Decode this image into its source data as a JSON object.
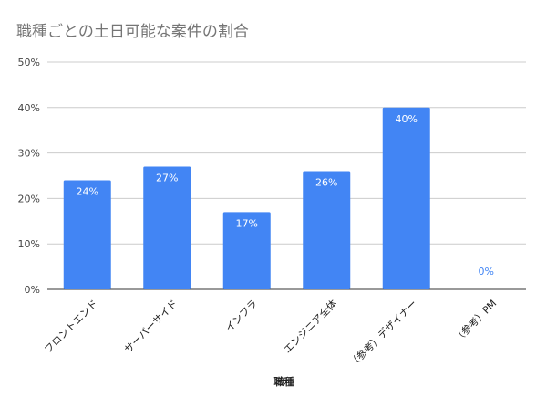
{
  "chart_data": {
    "type": "bar",
    "title": "職種ごとの土日可能な案件の割合",
    "xlabel": "職種",
    "ylabel": "",
    "categories": [
      "フロントエンド",
      "サーバーサイド",
      "インフラ",
      "エンジニア全体",
      "（参考）デザイナー",
      "（参考）PM"
    ],
    "values": [
      24,
      27,
      17,
      26,
      40,
      0
    ],
    "value_labels": [
      "24%",
      "27%",
      "17%",
      "26%",
      "40%",
      "0%"
    ],
    "ylim": [
      0,
      50
    ],
    "yticks": [
      0,
      10,
      20,
      30,
      40,
      50
    ],
    "ytick_labels": [
      "0%",
      "10%",
      "20%",
      "30%",
      "40%",
      "50%"
    ],
    "grid": true,
    "legend": "none",
    "bar_color": "#4285f4",
    "inside_label_color": "#ffffff",
    "outside_label_color": "#4285f4"
  }
}
